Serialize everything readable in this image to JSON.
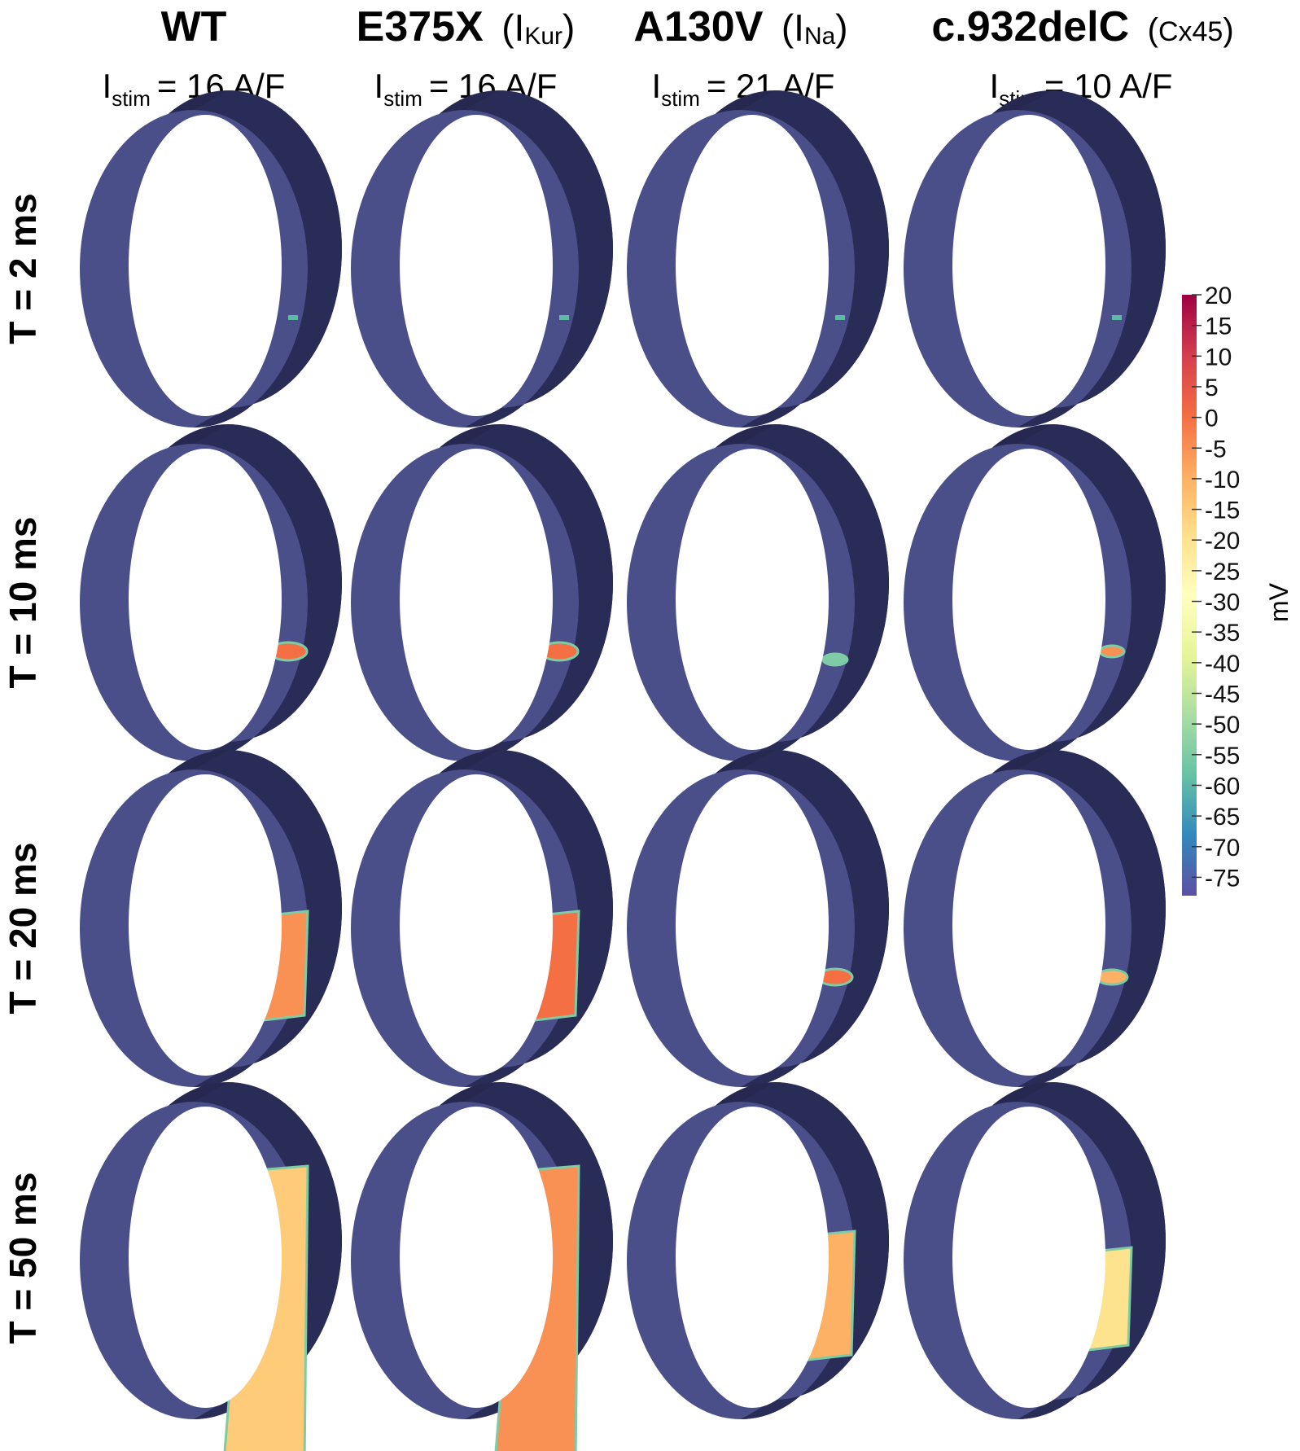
{
  "columns": [
    {
      "name": "WT",
      "channel": "",
      "stim_prefix": "I",
      "stim_sub": "stim",
      "stim_value": "= 16 A/F"
    },
    {
      "name": "E375X",
      "channel_open": "(I",
      "channel_sub": "Kur",
      "channel_close": ")",
      "stim_prefix": "I",
      "stim_sub": "stim",
      "stim_value": "= 16 A/F"
    },
    {
      "name": "A130V",
      "channel_open": "(I",
      "channel_sub": "Na",
      "channel_close": ")",
      "stim_prefix": "I",
      "stim_sub": "stim",
      "stim_value": "= 21 A/F"
    },
    {
      "name": "c.932delC",
      "channel_open": "(",
      "channel_sub": "Cx45",
      "channel_close": ")",
      "stim_prefix": "I",
      "stim_sub": "stim",
      "stim_value": "= 10 A/F"
    }
  ],
  "rows": [
    {
      "label": "T = 2 ms"
    },
    {
      "label": "T = 10 ms"
    },
    {
      "label": "T = 20 ms"
    },
    {
      "label": "T = 50 ms"
    }
  ],
  "activation_patches": [
    [
      {
        "kind": "dot",
        "mv": -60
      },
      {
        "kind": "dot",
        "mv": -60
      },
      {
        "kind": "dot",
        "mv": -60
      },
      {
        "kind": "dot",
        "mv": -60
      }
    ],
    [
      {
        "kind": "blob",
        "mv": 0,
        "extent": 0.35
      },
      {
        "kind": "blob",
        "mv": 0,
        "extent": 0.35
      },
      {
        "kind": "dot-ring",
        "mv": -55,
        "extent": 0.15
      },
      {
        "kind": "blob",
        "mv": -5,
        "extent": 0.15
      }
    ],
    [
      {
        "kind": "band",
        "mv": -5,
        "extent": 0.45
      },
      {
        "kind": "band",
        "mv": 0,
        "extent": 0.45
      },
      {
        "kind": "blob",
        "mv": 0,
        "extent": 0.3
      },
      {
        "kind": "blob",
        "mv": -10,
        "extent": 0.25
      }
    ],
    [
      {
        "kind": "wide-band",
        "mv": -15,
        "extent": 1.0
      },
      {
        "kind": "wide-band",
        "mv": -5,
        "extent": 1.0
      },
      {
        "kind": "band",
        "mv": -10,
        "extent": 0.6
      },
      {
        "kind": "band",
        "mv": -20,
        "extent": 0.4
      }
    ]
  ],
  "colorbar": {
    "unit": "mV",
    "min": -78,
    "max": 20,
    "ticks": [
      "20",
      "15",
      "10",
      "5",
      "0",
      "-5",
      "-10",
      "-15",
      "-20",
      "-25",
      "-30",
      "-35",
      "-40",
      "-45",
      "-50",
      "-55",
      "-60",
      "-65",
      "-70",
      "-75"
    ],
    "colormap": "Spectral_r",
    "stops": [
      "#5e4fa2",
      "#3288bd",
      "#66c2a5",
      "#abdda4",
      "#e6f598",
      "#ffffbf",
      "#fee08b",
      "#fdae61",
      "#f46d43",
      "#d53e4f",
      "#9e0142"
    ]
  },
  "ring_colors": {
    "front": "#4a4f8a",
    "back": "#262850",
    "edge": "#1a1c3a"
  }
}
